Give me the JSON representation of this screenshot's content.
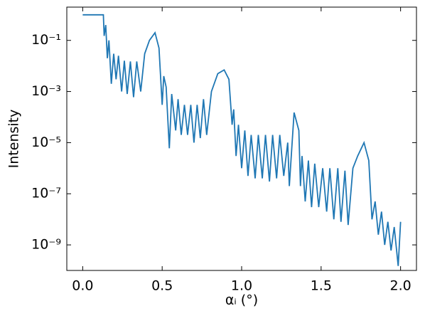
{
  "chart_data": {
    "type": "line",
    "xlabel": "αᵢ (°)",
    "ylabel": "Intensity",
    "x": [
      0,
      0.12,
      0.13,
      0.135,
      0.145,
      0.155,
      0.165,
      0.18,
      0.195,
      0.21,
      0.225,
      0.245,
      0.262,
      0.28,
      0.3,
      0.32,
      0.34,
      0.365,
      0.39,
      0.42,
      0.455,
      0.48,
      0.5,
      0.51,
      0.525,
      0.545,
      0.56,
      0.585,
      0.6,
      0.62,
      0.64,
      0.66,
      0.68,
      0.7,
      0.72,
      0.74,
      0.76,
      0.78,
      0.81,
      0.85,
      0.89,
      0.92,
      0.94,
      0.95,
      0.965,
      0.98,
      1.0,
      1.02,
      1.04,
      1.06,
      1.085,
      1.105,
      1.13,
      1.15,
      1.175,
      1.195,
      1.22,
      1.24,
      1.265,
      1.29,
      1.3,
      1.33,
      1.36,
      1.37,
      1.38,
      1.4,
      1.42,
      1.44,
      1.46,
      1.485,
      1.51,
      1.535,
      1.555,
      1.58,
      1.605,
      1.625,
      1.65,
      1.67,
      1.7,
      1.73,
      1.77,
      1.8,
      1.82,
      1.84,
      1.86,
      1.88,
      1.9,
      1.92,
      1.94,
      1.96,
      1.985,
      2.0
    ],
    "series": [
      {
        "name": "Intensity",
        "color": "#1f77b4",
        "values": [
          1,
          1,
          1,
          0.15,
          0.4,
          0.02,
          0.1,
          0.002,
          0.03,
          0.003,
          0.025,
          0.001,
          0.016,
          0.0008,
          0.015,
          0.0006,
          0.015,
          0.001,
          0.03,
          0.1,
          0.2,
          0.05,
          0.0003,
          0.004,
          0.0015,
          6e-06,
          0.0008,
          3e-05,
          0.0005,
          2e-05,
          0.0003,
          2e-05,
          0.0003,
          1e-05,
          0.0003,
          1.5e-05,
          0.0005,
          2e-05,
          0.001,
          0.005,
          0.007,
          0.003,
          5e-05,
          0.0002,
          3e-06,
          5e-05,
          1e-06,
          3e-05,
          5e-07,
          2e-05,
          4e-07,
          2e-05,
          4e-07,
          2e-05,
          3e-07,
          2e-05,
          4e-07,
          2e-05,
          5e-07,
          1e-05,
          2e-07,
          0.00015,
          3e-05,
          2e-07,
          3e-06,
          5e-08,
          2e-06,
          3e-08,
          1.5e-06,
          3e-08,
          1e-06,
          2e-08,
          1e-06,
          1e-08,
          1e-06,
          8e-09,
          8e-07,
          6e-09,
          1e-06,
          3e-06,
          1e-05,
          2e-06,
          1e-08,
          5e-08,
          2.5e-09,
          2e-08,
          1e-09,
          8e-09,
          6e-10,
          5e-09,
          1.5e-10,
          8e-09
        ]
      }
    ],
    "xlim": [
      -0.1,
      2.1
    ],
    "xticks": [
      {
        "value": 0,
        "label": "0.0"
      },
      0.5,
      {
        "value": 1,
        "label": "1.0"
      },
      1.5,
      {
        "value": 2,
        "label": "2.0"
      }
    ],
    "ylim": [
      1e-10,
      2
    ],
    "log_y": true,
    "yticks": [
      {
        "value": 0.1,
        "label": "10⁻¹"
      },
      {
        "value": 0.001,
        "label": "10⁻³"
      },
      {
        "value": 1e-05,
        "label": "10⁻⁵"
      },
      {
        "value": 1e-07,
        "label": "10⁻⁷"
      },
      {
        "value": 1e-09,
        "label": "10⁻⁹"
      }
    ],
    "grid": false
  }
}
